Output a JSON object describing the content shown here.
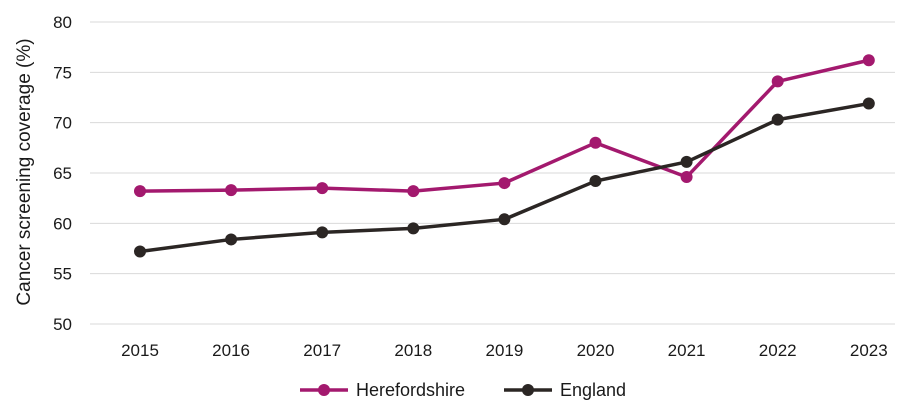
{
  "chart_data": {
    "type": "line",
    "title": "",
    "xlabel": "",
    "ylabel": "Cancer screening coverage (%)",
    "x": [
      "2015",
      "2016",
      "2017",
      "2018",
      "2019",
      "2020",
      "2021",
      "2022",
      "2023"
    ],
    "ylim": [
      50,
      80
    ],
    "yticks": [
      50,
      55,
      60,
      65,
      70,
      75,
      80
    ],
    "grid": true,
    "legend_position": "bottom",
    "series": [
      {
        "name": "Herefordshire",
        "color": "#a3196e",
        "values": [
          63.2,
          63.3,
          63.5,
          63.2,
          64.0,
          68.0,
          64.6,
          74.1,
          76.2
        ]
      },
      {
        "name": "England",
        "color": "#2b2624",
        "values": [
          57.2,
          58.4,
          59.1,
          59.5,
          60.4,
          64.2,
          66.1,
          70.3,
          71.9
        ]
      }
    ]
  }
}
